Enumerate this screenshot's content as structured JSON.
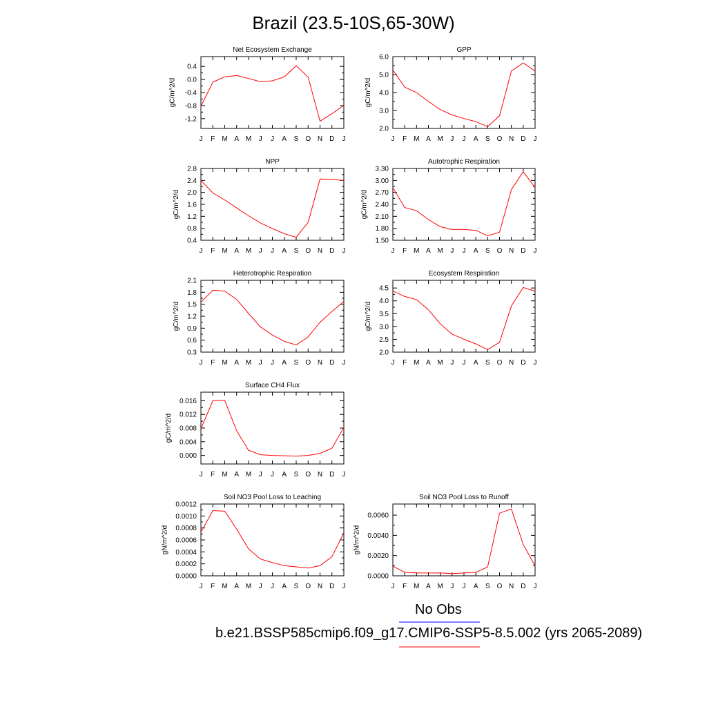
{
  "page_title": "Brazil (23.5-10S,65-30W)",
  "legend": {
    "obs_label": "No Obs",
    "model_label": "b.e21.BSSP585cmip6.f09_g17.CMIP6-SSP5-8.5.002 (yrs 2065-2089)",
    "obs_color": "#0000ff",
    "model_color": "#ff0000"
  },
  "chart_data": [
    {
      "type": "line",
      "title": "Net Ecosystem Exchange",
      "ylabel": "gC/m^2/d",
      "categories": [
        "J",
        "F",
        "M",
        "A",
        "M",
        "J",
        "J",
        "A",
        "S",
        "O",
        "N",
        "D",
        "J"
      ],
      "yticks": [
        "0.4",
        "0.0",
        "-0.4",
        "-0.8",
        "-1.2"
      ],
      "ylim": [
        -1.5,
        0.7
      ],
      "values": [
        -0.82,
        -0.08,
        0.08,
        0.12,
        0.03,
        -0.07,
        -0.04,
        0.08,
        0.42,
        0.07,
        -1.28,
        -1.05,
        -0.8
      ]
    },
    {
      "type": "line",
      "title": "GPP",
      "ylabel": "gC/m^2/d",
      "categories": [
        "J",
        "F",
        "M",
        "A",
        "M",
        "J",
        "J",
        "A",
        "S",
        "O",
        "N",
        "D",
        "J"
      ],
      "yticks": [
        "6.0",
        "5.0",
        "4.0",
        "3.0",
        "2.0"
      ],
      "ylim": [
        2.0,
        6.0
      ],
      "values": [
        5.25,
        4.3,
        4.0,
        3.5,
        3.05,
        2.75,
        2.55,
        2.38,
        2.1,
        2.7,
        5.2,
        5.65,
        5.2
      ]
    },
    {
      "type": "line",
      "title": "NPP",
      "ylabel": "gC/m^2/d",
      "categories": [
        "J",
        "F",
        "M",
        "A",
        "M",
        "J",
        "J",
        "A",
        "S",
        "O",
        "N",
        "D",
        "J"
      ],
      "yticks": [
        "2.8",
        "2.4",
        "2.0",
        "1.6",
        "1.2",
        "0.8",
        "0.4"
      ],
      "ylim": [
        0.4,
        2.8
      ],
      "values": [
        2.4,
        1.98,
        1.75,
        1.48,
        1.22,
        0.98,
        0.79,
        0.62,
        0.5,
        1.0,
        2.45,
        2.43,
        2.4
      ]
    },
    {
      "type": "line",
      "title": "Autotrophic Respiration",
      "ylabel": "gC/m^2/d",
      "categories": [
        "J",
        "F",
        "M",
        "A",
        "M",
        "J",
        "J",
        "A",
        "S",
        "O",
        "N",
        "D",
        "J"
      ],
      "yticks": [
        "3.30",
        "3.00",
        "2.70",
        "2.40",
        "2.10",
        "1.80",
        "1.50"
      ],
      "ylim": [
        1.5,
        3.3
      ],
      "values": [
        2.82,
        2.32,
        2.24,
        2.02,
        1.84,
        1.77,
        1.77,
        1.75,
        1.61,
        1.7,
        2.77,
        3.22,
        2.82
      ]
    },
    {
      "type": "line",
      "title": "Heterotrophic Respiration",
      "ylabel": "gC/m^2/d",
      "categories": [
        "J",
        "F",
        "M",
        "A",
        "M",
        "J",
        "J",
        "A",
        "S",
        "O",
        "N",
        "D",
        "J"
      ],
      "yticks": [
        "2.1",
        "1.8",
        "1.5",
        "1.2",
        "0.9",
        "0.6",
        "0.3"
      ],
      "ylim": [
        0.3,
        2.1
      ],
      "values": [
        1.55,
        1.85,
        1.83,
        1.62,
        1.27,
        0.93,
        0.73,
        0.57,
        0.48,
        0.68,
        1.05,
        1.32,
        1.57
      ]
    },
    {
      "type": "line",
      "title": "Ecosystem Respiration",
      "ylabel": "gC/m^2/d",
      "categories": [
        "J",
        "F",
        "M",
        "A",
        "M",
        "J",
        "J",
        "A",
        "S",
        "O",
        "N",
        "D",
        "J"
      ],
      "yticks": [
        "4.5",
        "4.0",
        "3.5",
        "3.0",
        "2.5",
        "2.0"
      ],
      "ylim": [
        2.0,
        4.8
      ],
      "values": [
        4.38,
        4.17,
        4.05,
        3.65,
        3.1,
        2.7,
        2.5,
        2.32,
        2.1,
        2.38,
        3.8,
        4.52,
        4.38
      ]
    },
    {
      "type": "line",
      "title": "Surface CH4 Flux",
      "ylabel": "gC/m^2/d",
      "categories": [
        "J",
        "F",
        "M",
        "A",
        "M",
        "J",
        "J",
        "A",
        "S",
        "O",
        "N",
        "D",
        "J"
      ],
      "yticks": [
        "0.016",
        "0.012",
        "0.008",
        "0.004",
        "0.000"
      ],
      "ylim": [
        -0.0025,
        0.0185
      ],
      "values": [
        0.0078,
        0.016,
        0.0161,
        0.0072,
        0.0015,
        0.0002,
        0.0,
        -0.0001,
        -0.0002,
        0.0,
        0.0006,
        0.0021,
        0.0082
      ]
    },
    {
      "type": "line",
      "title": "Soil NO3 Pool Loss to Leaching",
      "ylabel": "gN/m^2/d",
      "categories": [
        "J",
        "F",
        "M",
        "A",
        "M",
        "J",
        "J",
        "A",
        "S",
        "O",
        "N",
        "D",
        "J"
      ],
      "yticks": [
        "0.0012",
        "0.0010",
        "0.0008",
        "0.0006",
        "0.0004",
        "0.0002",
        "0.0000"
      ],
      "ylim": [
        0.0,
        0.0012
      ],
      "values": [
        0.00073,
        0.00109,
        0.00108,
        0.00078,
        0.00045,
        0.00028,
        0.00022,
        0.00017,
        0.00015,
        0.00013,
        0.00017,
        0.00032,
        0.00072
      ]
    },
    {
      "type": "line",
      "title": "Soil NO3 Pool Loss to Runoff",
      "ylabel": "gN/m^2/d",
      "categories": [
        "J",
        "F",
        "M",
        "A",
        "M",
        "J",
        "J",
        "A",
        "S",
        "O",
        "N",
        "D",
        "J"
      ],
      "yticks": [
        "0.0060",
        "0.0040",
        "0.0020",
        "0.0000"
      ],
      "ylim": [
        0.0,
        0.0071
      ],
      "values": [
        0.00095,
        0.00035,
        0.00028,
        0.00028,
        0.00028,
        0.00022,
        0.00028,
        0.00035,
        0.00088,
        0.0062,
        0.0066,
        0.0031,
        0.00098
      ]
    }
  ]
}
